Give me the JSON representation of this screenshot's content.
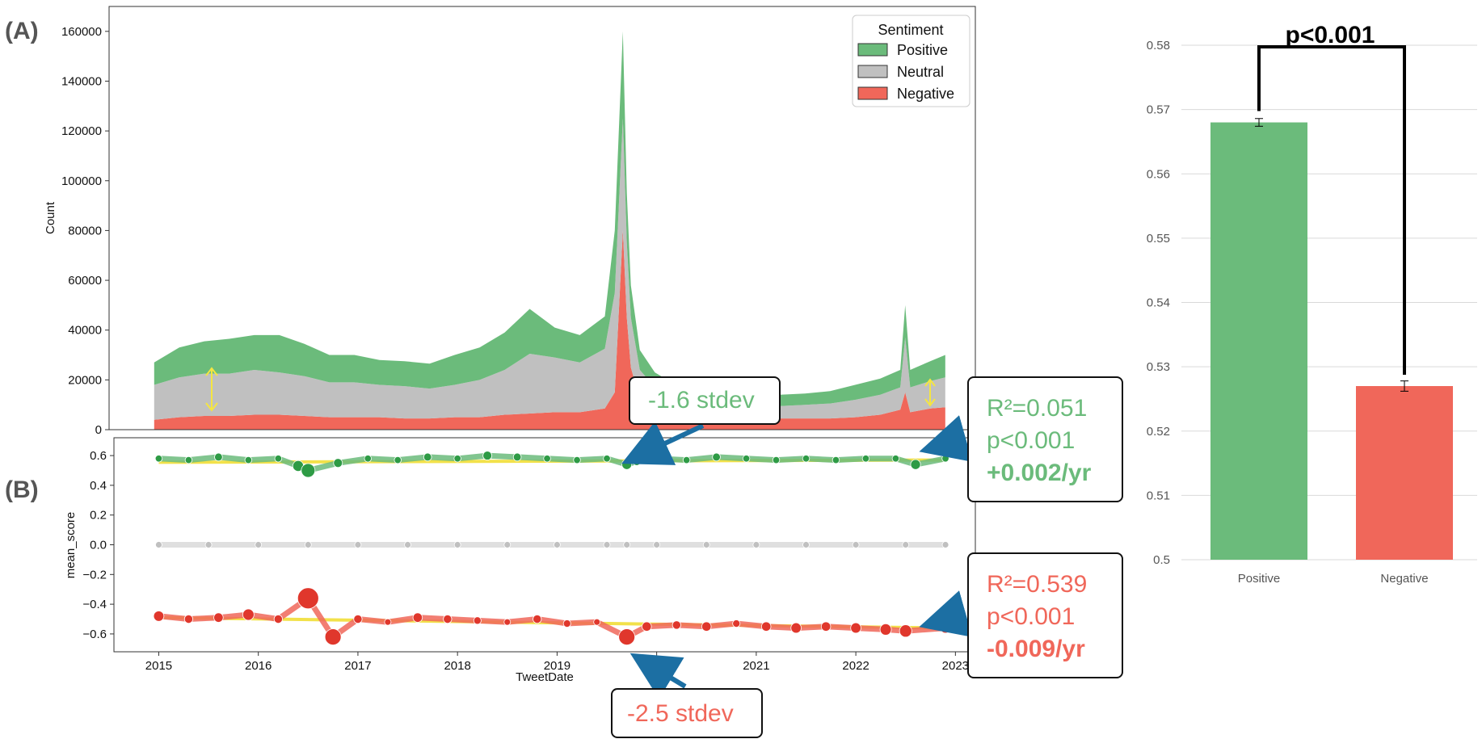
{
  "panel_labels": {
    "a": "(A)",
    "b": "(B)"
  },
  "colors": {
    "positive": "#6bbb7b",
    "neutral": "#c0c0c0",
    "negative": "#f0675a",
    "pos_dot": "#2e9b45",
    "neg_dot": "#e0372c",
    "trend": "#f2e14a",
    "arrow": "#1c6fa3"
  },
  "annotations": {
    "stdev_top": "-1.6 stdev",
    "stdev_bottom": "-2.5 stdev",
    "pos_stats": {
      "r2": "R²=0.051",
      "p": "p<0.001",
      "slope": "+0.002/yr"
    },
    "neg_stats": {
      "r2": "R²=0.539",
      "p": "p<0.001",
      "slope": "-0.009/yr"
    }
  },
  "chart_data": [
    {
      "id": "A",
      "type": "area",
      "stacked": true,
      "xlabel": "",
      "ylabel": "Count",
      "ylim": [
        0,
        170000
      ],
      "yticks": [
        "0",
        "20000",
        "40000",
        "60000",
        "80000",
        "100000",
        "120000",
        "140000",
        "160000"
      ],
      "legend": {
        "title": "Sentiment",
        "placement": "top-right",
        "entries": [
          "Positive",
          "Neutral",
          "Negative"
        ]
      },
      "x": [
        2015.0,
        2015.25,
        2015.5,
        2015.75,
        2016.0,
        2016.25,
        2016.5,
        2016.75,
        2017.0,
        2017.25,
        2017.5,
        2017.75,
        2018.0,
        2018.25,
        2018.5,
        2018.75,
        2019.0,
        2019.25,
        2019.5,
        2019.6,
        2019.68,
        2019.72,
        2019.76,
        2019.85,
        2020.0,
        2020.25,
        2020.5,
        2020.75,
        2021.0,
        2021.25,
        2021.5,
        2021.75,
        2022.0,
        2022.25,
        2022.45,
        2022.5,
        2022.55,
        2022.75,
        2022.9
      ],
      "series": [
        {
          "name": "Negative",
          "values": [
            4000,
            5000,
            5500,
            5500,
            6000,
            6000,
            5500,
            5000,
            5000,
            5000,
            4500,
            4500,
            5000,
            5000,
            6000,
            6500,
            7000,
            7000,
            8500,
            15000,
            80000,
            45000,
            25000,
            12000,
            9000,
            6000,
            5000,
            4500,
            4500,
            4500,
            4500,
            4500,
            5000,
            6000,
            8000,
            15000,
            7000,
            8500,
            9000
          ]
        },
        {
          "name": "Neutral",
          "values": [
            14000,
            16000,
            17000,
            17000,
            18000,
            17000,
            16000,
            14000,
            14000,
            13000,
            13000,
            12000,
            13000,
            15000,
            18000,
            24000,
            22000,
            20000,
            24000,
            40000,
            45000,
            30000,
            20000,
            12000,
            8000,
            6000,
            5000,
            5000,
            5000,
            5000,
            5500,
            6000,
            7000,
            8000,
            9000,
            22000,
            10000,
            11000,
            12000
          ]
        },
        {
          "name": "Positive",
          "values": [
            9000,
            12000,
            13000,
            14000,
            14000,
            15000,
            13000,
            11000,
            11000,
            10000,
            10000,
            10000,
            12000,
            13000,
            15000,
            18000,
            12000,
            11000,
            13000,
            25000,
            35000,
            20000,
            13000,
            8000,
            6000,
            5000,
            4500,
            4500,
            4500,
            4500,
            4500,
            5000,
            6000,
            6500,
            7000,
            13000,
            7000,
            8000,
            9000
          ]
        }
      ]
    },
    {
      "id": "B",
      "type": "scatter",
      "xlabel": "TweetDate",
      "ylabel": "mean_score",
      "xlim": [
        2014.55,
        2023.2
      ],
      "ylim": [
        -0.72,
        0.72
      ],
      "xticks": [
        "2015",
        "2016",
        "2017",
        "2018",
        "2019",
        "2020",
        "2021",
        "2022",
        "2023"
      ],
      "yticks": [
        "−0.6",
        "−0.4",
        "−0.2",
        "0.0",
        "0.2",
        "0.4",
        "0.6"
      ],
      "series": [
        {
          "name": "Positive",
          "x": [
            2015.0,
            2015.3,
            2015.6,
            2015.9,
            2016.2,
            2016.4,
            2016.5,
            2016.8,
            2017.1,
            2017.4,
            2017.7,
            2018.0,
            2018.3,
            2018.6,
            2018.9,
            2019.2,
            2019.5,
            2019.7,
            2019.8,
            2020.0,
            2020.3,
            2020.6,
            2020.9,
            2021.2,
            2021.5,
            2021.8,
            2022.1,
            2022.4,
            2022.6,
            2022.9
          ],
          "values": [
            0.58,
            0.57,
            0.59,
            0.57,
            0.58,
            0.53,
            0.5,
            0.55,
            0.58,
            0.57,
            0.59,
            0.58,
            0.6,
            0.59,
            0.58,
            0.57,
            0.58,
            0.54,
            0.56,
            0.58,
            0.57,
            0.59,
            0.58,
            0.57,
            0.58,
            0.57,
            0.58,
            0.58,
            0.54,
            0.58
          ]
        },
        {
          "name": "Neutral",
          "x": [
            2015.0,
            2015.5,
            2016.0,
            2016.5,
            2017.0,
            2017.5,
            2018.0,
            2018.5,
            2019.0,
            2019.5,
            2019.7,
            2020.0,
            2020.5,
            2021.0,
            2021.5,
            2022.0,
            2022.5,
            2022.9
          ],
          "values": [
            0.0,
            0.0,
            0.0,
            0.0,
            0.0,
            0.0,
            0.0,
            0.0,
            0.0,
            0.0,
            0.0,
            0.0,
            0.0,
            0.0,
            0.0,
            0.0,
            0.0,
            0.0
          ]
        },
        {
          "name": "Negative",
          "x": [
            2015.0,
            2015.3,
            2015.6,
            2015.9,
            2016.2,
            2016.5,
            2016.75,
            2017.0,
            2017.3,
            2017.6,
            2017.9,
            2018.2,
            2018.5,
            2018.8,
            2019.1,
            2019.4,
            2019.7,
            2019.9,
            2020.2,
            2020.5,
            2020.8,
            2021.1,
            2021.4,
            2021.7,
            2022.0,
            2022.3,
            2022.5,
            2022.9
          ],
          "values": [
            -0.48,
            -0.5,
            -0.49,
            -0.47,
            -0.5,
            -0.36,
            -0.62,
            -0.5,
            -0.52,
            -0.49,
            -0.5,
            -0.51,
            -0.52,
            -0.5,
            -0.53,
            -0.52,
            -0.62,
            -0.55,
            -0.54,
            -0.55,
            -0.53,
            -0.55,
            -0.56,
            -0.55,
            -0.56,
            -0.57,
            -0.58,
            -0.56
          ]
        }
      ],
      "trend": [
        {
          "name": "Positive",
          "x": [
            2015.0,
            2022.9
          ],
          "values": [
            0.555,
            0.57
          ]
        },
        {
          "name": "Negative",
          "x": [
            2015.0,
            2022.9
          ],
          "values": [
            -0.49,
            -0.56
          ]
        }
      ]
    },
    {
      "id": "C",
      "type": "bar",
      "categories": [
        "Positive",
        "Negative"
      ],
      "values": [
        0.568,
        0.527
      ],
      "errors": [
        0.0006,
        0.0008
      ],
      "ylim": [
        0.5,
        0.58
      ],
      "yticks": [
        "0.58",
        "0.57",
        "0.56",
        "0.55",
        "0.54",
        "0.53",
        "0.52",
        "0.51",
        "0.5"
      ],
      "significance": "p<0.001",
      "xlabel": "",
      "ylabel": ""
    }
  ]
}
